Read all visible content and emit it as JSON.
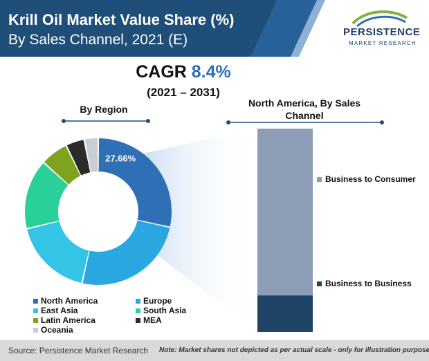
{
  "header": {
    "title": "Krill Oil Market Value Share (%)",
    "subtitle": "By Sales Channel, 2021 (E)",
    "logo": {
      "name": "PERSISTENCE",
      "tagline": "MARKET RESEARCH"
    }
  },
  "cagr": {
    "label": "CAGR",
    "value": "8.4%",
    "period": "(2021 – 2031)"
  },
  "colors": {
    "header_band": "#1f4e79",
    "accent": "#2f6fb5",
    "North America": "#2f6fb5",
    "Europe": "#2aa7e0",
    "East Asia": "#34c4e6",
    "South Asia": "#2bcf9a",
    "Latin America": "#7fa21f",
    "MEA": "#2b2b2b",
    "Oceania": "#c9cdd6",
    "Business to Consumer": "#8d9db5",
    "Business to Business": "#1f4566"
  },
  "chart_data": [
    {
      "type": "pie",
      "title": "By Region",
      "donut": true,
      "labels": [
        "North America",
        "Europe",
        "East Asia",
        "South Asia",
        "Latin America",
        "MEA",
        "Oceania"
      ],
      "values": [
        27.66,
        24.5,
        17.2,
        15.0,
        6.0,
        4.0,
        3.0
      ],
      "data_labels": [
        {
          "category": "North America",
          "text": "27.66%"
        }
      ],
      "legend": "bottom"
    },
    {
      "type": "bar",
      "title": "North America, By Sales Channel",
      "stacked": true,
      "categories": [
        "North America"
      ],
      "series": [
        {
          "name": "Business to Business",
          "values": [
            18
          ]
        },
        {
          "name": "Business to Consumer",
          "values": [
            82
          ]
        }
      ],
      "ylim": [
        0,
        100
      ],
      "legend": "right"
    }
  ],
  "footer": {
    "source": "Source: Persistence Market Research",
    "note": "Note: Market shares not depicted as per actual scale - only for illustration purposes"
  }
}
